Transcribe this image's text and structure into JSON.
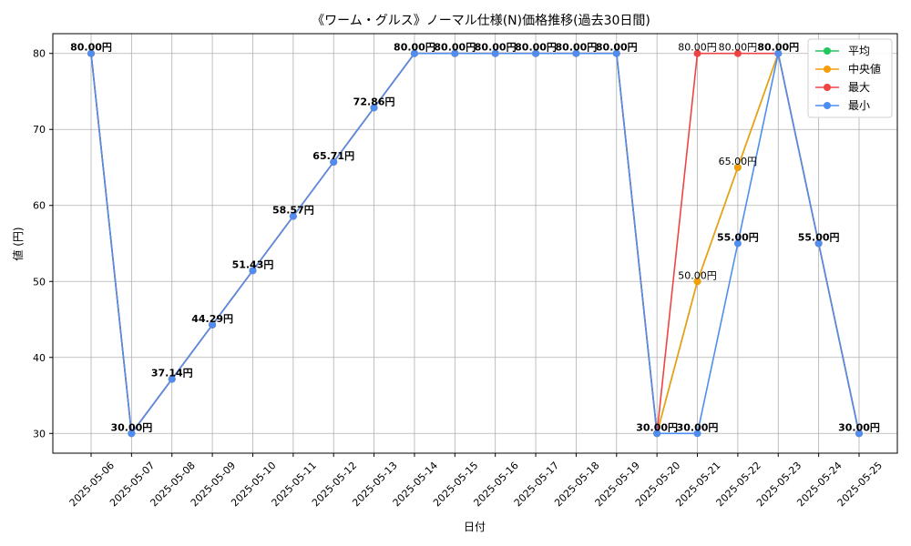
{
  "chart_data": {
    "type": "line",
    "title": "《ワーム・グルス》ノーマル仕様(N)価格推移(過去30日間)",
    "xlabel": "日付",
    "ylabel": "値 (円)",
    "ylim": [
      27.4,
      82.6
    ],
    "yticks": [
      30,
      40,
      50,
      60,
      70,
      80
    ],
    "grid": true,
    "legend_position": "top-right",
    "categories": [
      "2025-05-06",
      "2025-05-07",
      "2025-05-08",
      "2025-05-09",
      "2025-05-10",
      "2025-05-11",
      "2025-05-12",
      "2025-05-13",
      "2025-05-14",
      "2025-05-15",
      "2025-05-16",
      "2025-05-17",
      "2025-05-18",
      "2025-05-19",
      "2025-05-20",
      "2025-05-21",
      "2025-05-22",
      "2025-05-23",
      "2025-05-24",
      "2025-05-25"
    ],
    "series": [
      {
        "name": "平均",
        "color": "#22c55e",
        "values": [
          80,
          30,
          37.14,
          44.29,
          51.43,
          58.57,
          65.71,
          72.86,
          80,
          80,
          80,
          80,
          80,
          80,
          30,
          50,
          65,
          80,
          55,
          30
        ]
      },
      {
        "name": "中央値",
        "color": "#f59e0b",
        "values": [
          80,
          30,
          37.14,
          44.29,
          51.43,
          58.57,
          65.71,
          72.86,
          80,
          80,
          80,
          80,
          80,
          80,
          30,
          50,
          65,
          80,
          55,
          30
        ]
      },
      {
        "name": "最大",
        "color": "#ef4444",
        "values": [
          80,
          30,
          37.14,
          44.29,
          51.43,
          58.57,
          65.71,
          72.86,
          80,
          80,
          80,
          80,
          80,
          80,
          30,
          80,
          80,
          80,
          55,
          30
        ]
      },
      {
        "name": "最小",
        "color": "#4f8ef0",
        "values": [
          80,
          30,
          37.14,
          44.29,
          51.43,
          58.57,
          65.71,
          72.86,
          80,
          80,
          80,
          80,
          80,
          80,
          30,
          30,
          55,
          80,
          55,
          30
        ]
      }
    ],
    "annotations": [
      {
        "i": 0,
        "text": "80.00円",
        "bold": true
      },
      {
        "i": 1,
        "text": "30.00円",
        "bold": true
      },
      {
        "i": 2,
        "text": "37.14円",
        "bold": true
      },
      {
        "i": 3,
        "text": "44.29円",
        "bold": true
      },
      {
        "i": 4,
        "text": "51.43円",
        "bold": true
      },
      {
        "i": 5,
        "text": "58.57円",
        "bold": true
      },
      {
        "i": 6,
        "text": "65.71円",
        "bold": true
      },
      {
        "i": 7,
        "text": "72.86円",
        "bold": true
      },
      {
        "i": 8,
        "text": "80.00円",
        "bold": true
      },
      {
        "i": 9,
        "text": "80.00円",
        "bold": true
      },
      {
        "i": 10,
        "text": "80.00円",
        "bold": true
      },
      {
        "i": 11,
        "text": "80.00円",
        "bold": true
      },
      {
        "i": 12,
        "text": "80.00円",
        "bold": true
      },
      {
        "i": 13,
        "text": "80.00円",
        "bold": true
      },
      {
        "i": 14,
        "text": "30.00円",
        "bold": true
      },
      {
        "i": 15,
        "text": "80.00円",
        "bold": false,
        "y": 80
      },
      {
        "i": 15,
        "text": "50.00円",
        "bold": false,
        "y": 50
      },
      {
        "i": 15,
        "text": "30.00円",
        "bold": true,
        "y": 30
      },
      {
        "i": 16,
        "text": "80.00円",
        "bold": false,
        "y": 80
      },
      {
        "i": 16,
        "text": "65.00円",
        "bold": false,
        "y": 65
      },
      {
        "i": 16,
        "text": "55.00円",
        "bold": true,
        "y": 55
      },
      {
        "i": 17,
        "text": "80.00円",
        "bold": true
      },
      {
        "i": 18,
        "text": "55.00円",
        "bold": true
      },
      {
        "i": 19,
        "text": "30.00円",
        "bold": true
      }
    ]
  }
}
